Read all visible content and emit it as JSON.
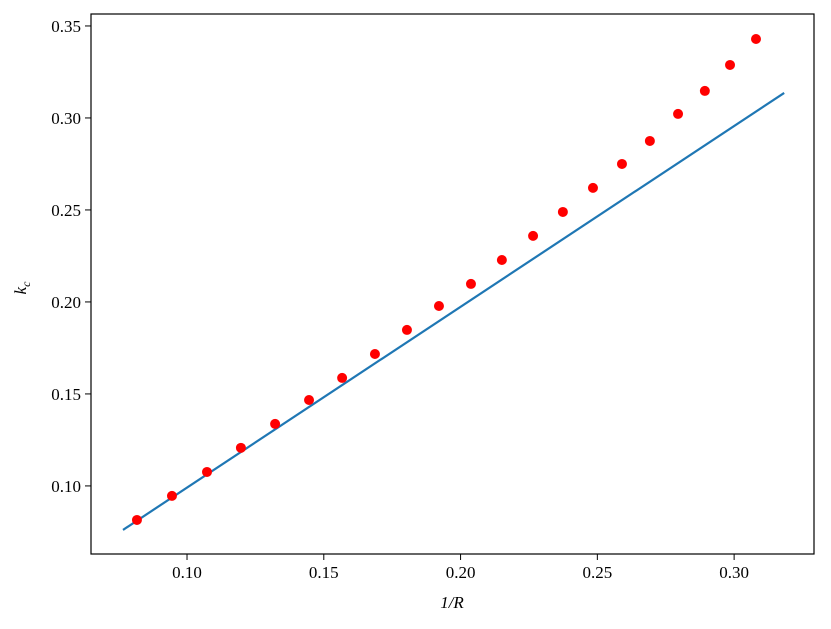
{
  "chart_data": {
    "type": "scatter",
    "xlabel": "1/R",
    "ylabel": {
      "text": "k",
      "subscript": "c"
    },
    "xlim": [
      0.0649,
      0.3292
    ],
    "ylim": [
      0.063,
      0.3565
    ],
    "xticks": [
      {
        "value": 0.1,
        "label": "0.10"
      },
      0.15,
      {
        "value": 0.2,
        "label": "0.20"
      },
      0.25,
      {
        "value": 0.3,
        "label": "0.30"
      }
    ],
    "yticks": [
      {
        "value": 0.1,
        "label": "0.10"
      },
      0.15,
      {
        "value": 0.2,
        "label": "0.20"
      },
      0.25,
      {
        "value": 0.3,
        "label": "0.30"
      },
      0.35
    ],
    "series": [
      {
        "type": "line",
        "color": "#1f77b4",
        "x": [
          0.0766,
          0.3183
        ],
        "values": [
          0.0761,
          0.3136
        ]
      },
      {
        "type": "scatter",
        "color": "#ff0000",
        "x": [
          0.0817,
          0.0945,
          0.1073,
          0.1197,
          0.1322,
          0.1446,
          0.1567,
          0.1687,
          0.1804,
          0.1921,
          0.2038,
          0.2151,
          0.2265,
          0.2374,
          0.2484,
          0.259,
          0.2692,
          0.2795,
          0.2893,
          0.2985,
          0.308
        ],
        "values": [
          0.0815,
          0.0946,
          0.1076,
          0.1207,
          0.1337,
          0.1467,
          0.1587,
          0.1717,
          0.1848,
          0.1978,
          0.2098,
          0.2228,
          0.2359,
          0.2489,
          0.262,
          0.275,
          0.2875,
          0.3022,
          0.3147,
          0.3288,
          0.3429
        ]
      }
    ]
  }
}
